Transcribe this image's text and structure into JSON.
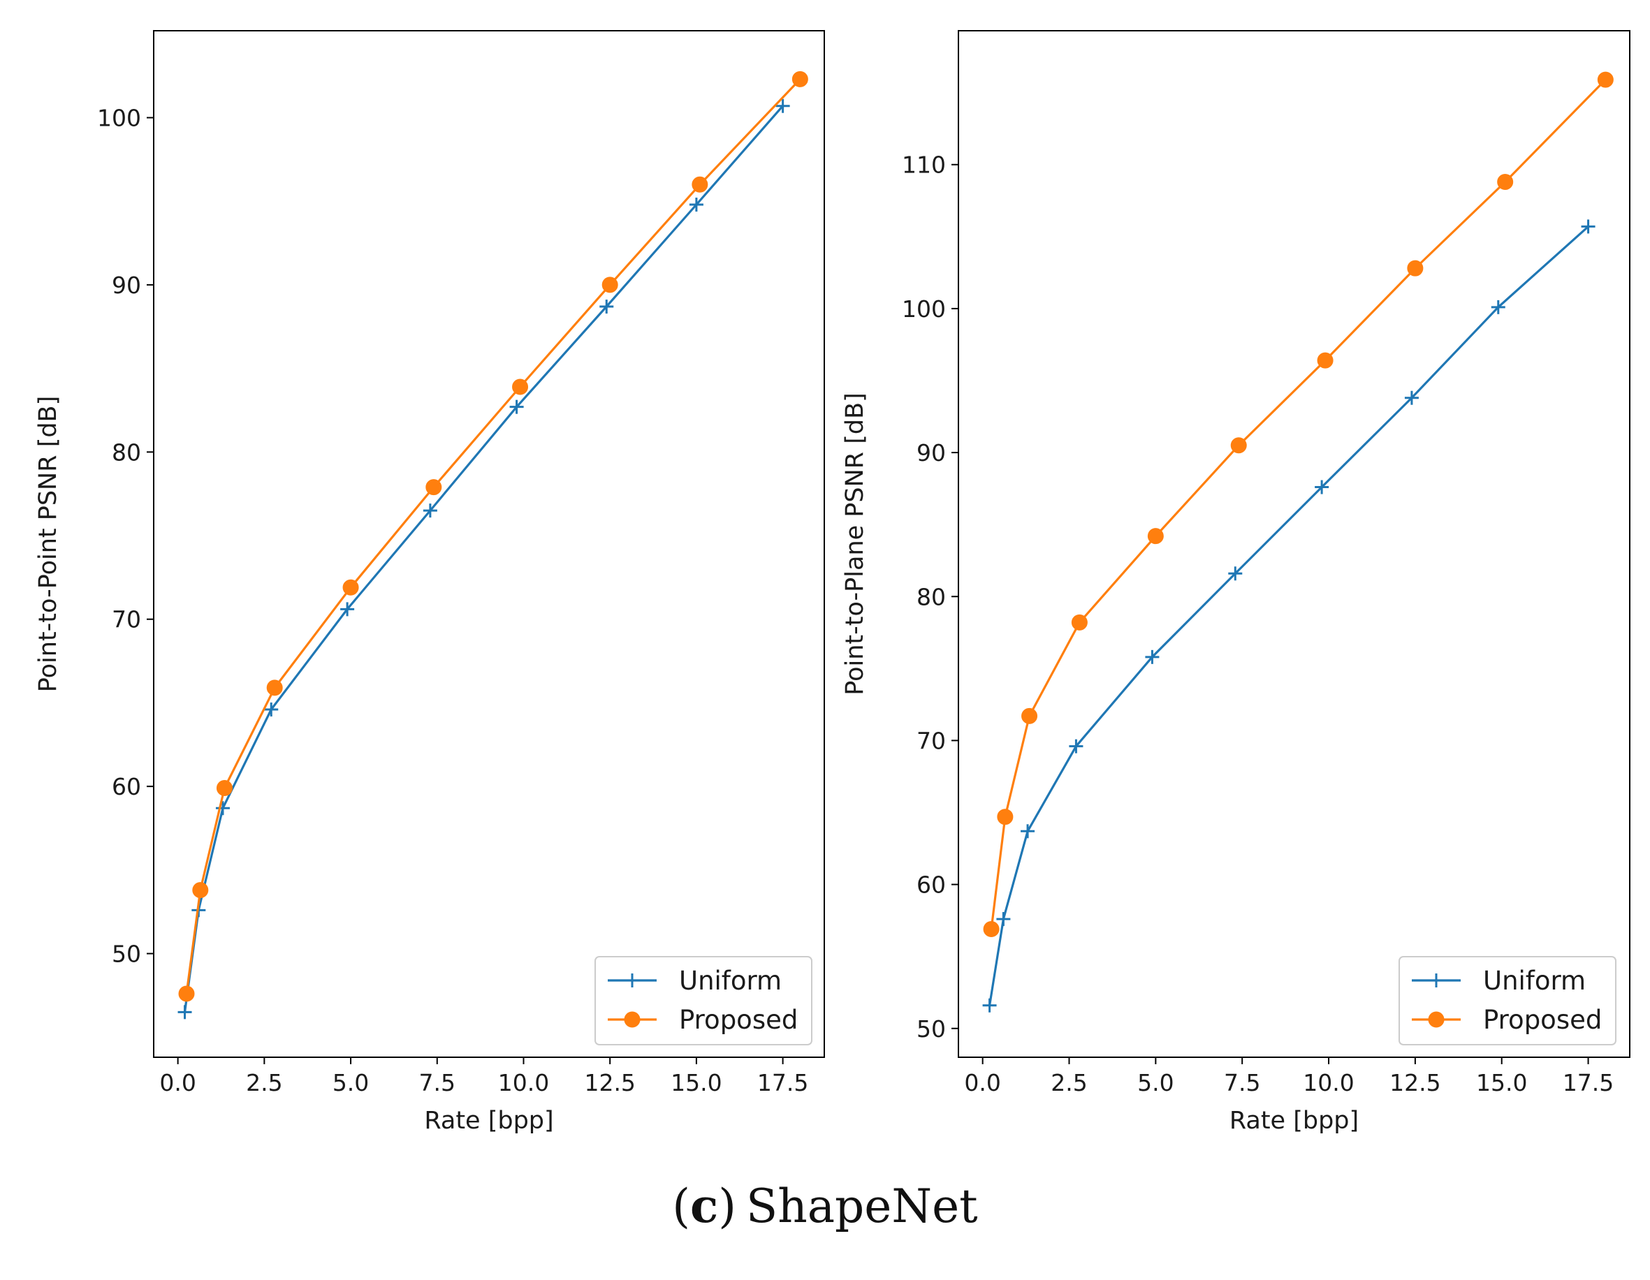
{
  "caption": {
    "open_paren": "(",
    "letter": "c",
    "close_paren": ")",
    "text": "ShapeNet"
  },
  "colors": {
    "uniform": "#1f77b4",
    "proposed": "#ff7f0e"
  },
  "chart_data": [
    {
      "type": "line",
      "title": "",
      "xlabel": "Rate [bpp]",
      "ylabel": "Point-to-Point PSNR [dB]",
      "xlim": [
        -0.7,
        18.7
      ],
      "ylim": [
        43.8,
        105.2
      ],
      "xticks": [
        0.0,
        2.5,
        5.0,
        7.5,
        10.0,
        12.5,
        15.0,
        17.5
      ],
      "xtick_labels": [
        "0.0",
        "2.5",
        "5.0",
        "7.5",
        "10.0",
        "12.5",
        "15.0",
        "17.5"
      ],
      "yticks": [
        50,
        60,
        70,
        80,
        90,
        100
      ],
      "ytick_labels": [
        "50",
        "60",
        "70",
        "80",
        "90",
        "100"
      ],
      "legend_position": "lower-right",
      "series": [
        {
          "name": "Uniform",
          "marker": "plus",
          "x": [
            0.2,
            0.6,
            1.3,
            2.7,
            4.9,
            7.3,
            9.8,
            12.4,
            15.0,
            17.5
          ],
          "y": [
            46.5,
            52.6,
            58.7,
            64.6,
            70.6,
            76.5,
            82.7,
            88.7,
            94.8,
            100.7
          ]
        },
        {
          "name": "Proposed",
          "marker": "circle",
          "x": [
            0.25,
            0.65,
            1.35,
            2.8,
            5.0,
            7.4,
            9.9,
            12.5,
            15.1,
            18.0
          ],
          "y": [
            47.6,
            53.8,
            59.9,
            65.9,
            71.9,
            77.9,
            83.9,
            90.0,
            96.0,
            102.3
          ]
        }
      ]
    },
    {
      "type": "line",
      "title": "",
      "xlabel": "Rate [bpp]",
      "ylabel": "Point-to-Plane PSNR [dB]",
      "xlim": [
        -0.7,
        18.7
      ],
      "ylim": [
        48.0,
        119.3
      ],
      "xticks": [
        0.0,
        2.5,
        5.0,
        7.5,
        10.0,
        12.5,
        15.0,
        17.5
      ],
      "xtick_labels": [
        "0.0",
        "2.5",
        "5.0",
        "7.5",
        "10.0",
        "12.5",
        "15.0",
        "17.5"
      ],
      "yticks": [
        50,
        60,
        70,
        80,
        90,
        100,
        110
      ],
      "ytick_labels": [
        "50",
        "60",
        "70",
        "80",
        "90",
        "100",
        "110"
      ],
      "legend_position": "lower-right",
      "series": [
        {
          "name": "Uniform",
          "marker": "plus",
          "x": [
            0.2,
            0.6,
            1.3,
            2.7,
            4.9,
            7.3,
            9.8,
            12.4,
            14.9,
            17.5
          ],
          "y": [
            51.6,
            57.6,
            63.7,
            69.6,
            75.8,
            81.6,
            87.6,
            93.8,
            100.1,
            105.7
          ]
        },
        {
          "name": "Proposed",
          "marker": "circle",
          "x": [
            0.25,
            0.65,
            1.35,
            2.8,
            5.0,
            7.4,
            9.9,
            12.5,
            15.1,
            18.0
          ],
          "y": [
            56.9,
            64.7,
            71.7,
            78.2,
            84.2,
            90.5,
            96.4,
            102.8,
            108.8,
            115.9
          ]
        }
      ]
    }
  ]
}
